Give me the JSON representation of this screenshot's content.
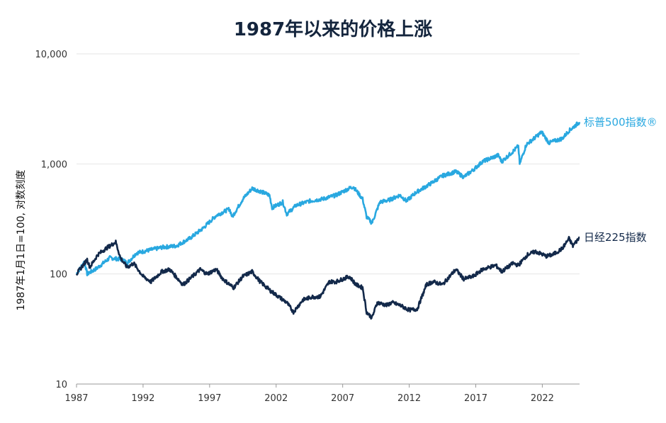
{
  "chart_data": {
    "type": "line",
    "title": "1987年以来的价格上涨",
    "xlabel": "",
    "ylabel": "1987年1月1日=100, 对数刻度",
    "y_scale": "log",
    "ylim": [
      10,
      10000
    ],
    "xlim": [
      1987,
      2024.8
    ],
    "y_ticks": [
      10,
      100,
      1000,
      10000
    ],
    "y_tick_labels": [
      "10",
      "100",
      "1,000",
      "10,000"
    ],
    "x_ticks": [
      1987,
      1992,
      1997,
      2002,
      2007,
      2012,
      2017,
      2022
    ],
    "x_tick_labels": [
      "1987",
      "1992",
      "1997",
      "2002",
      "2007",
      "2012",
      "2017",
      "2022"
    ],
    "grid": true,
    "series": [
      {
        "name": "标普500指数®",
        "color": "#29a8e0",
        "x": [
          1987.0,
          1987.6,
          1987.8,
          1988.5,
          1989.5,
          1990.5,
          1990.8,
          1991.5,
          1992.5,
          1993.5,
          1994.5,
          1995.5,
          1996.5,
          1997.5,
          1998.5,
          1998.7,
          1999.5,
          2000.2,
          2000.7,
          2001.5,
          2001.7,
          2002.5,
          2002.8,
          2003.5,
          2004.5,
          2005.5,
          2006.5,
          2007.5,
          2007.8,
          2008.5,
          2008.8,
          2009.2,
          2009.8,
          2010.5,
          2011.3,
          2011.8,
          2012.5,
          2013.5,
          2014.5,
          2015.5,
          2016.1,
          2016.8,
          2017.5,
          2018.7,
          2018.95,
          2019.8,
          2020.2,
          2020.3,
          2020.8,
          2021.5,
          2021.95,
          2022.5,
          2022.8,
          2023.5,
          2024.0,
          2024.8
        ],
        "y": [
          100,
          130,
          100,
          112,
          140,
          135,
          125,
          155,
          165,
          175,
          180,
          210,
          260,
          340,
          390,
          330,
          480,
          600,
          570,
          520,
          400,
          450,
          350,
          420,
          460,
          480,
          520,
          600,
          620,
          480,
          330,
          290,
          450,
          470,
          520,
          460,
          550,
          650,
          780,
          850,
          760,
          880,
          1050,
          1200,
          1050,
          1300,
          1450,
          1000,
          1500,
          1750,
          1950,
          1550,
          1600,
          1700,
          2000,
          2400
        ]
      },
      {
        "name": "日经225指数",
        "color": "#13294a",
        "x": [
          1987.0,
          1987.8,
          1988.0,
          1988.6,
          1989.2,
          1989.95,
          1990.3,
          1990.8,
          1991.3,
          1992.0,
          1992.6,
          1993.4,
          1994.0,
          1995.0,
          1995.5,
          1996.3,
          1996.8,
          1997.5,
          1998.0,
          1998.8,
          1999.5,
          2000.2,
          2000.8,
          2001.6,
          2002.2,
          2002.8,
          2003.3,
          2004.0,
          2004.7,
          2005.3,
          2006.0,
          2006.5,
          2007.5,
          2008.0,
          2008.5,
          2008.8,
          2009.2,
          2009.6,
          2010.3,
          2010.7,
          2011.3,
          2012.0,
          2012.6,
          2013.3,
          2013.8,
          2014.5,
          2015.5,
          2016.1,
          2016.8,
          2017.5,
          2018.5,
          2018.95,
          2019.8,
          2020.2,
          2020.9,
          2021.5,
          2022.3,
          2022.8,
          2023.5,
          2024.0,
          2024.3,
          2024.8
        ],
        "y": [
          100,
          135,
          115,
          150,
          170,
          195,
          140,
          115,
          125,
          95,
          85,
          105,
          110,
          80,
          90,
          110,
          100,
          110,
          90,
          75,
          95,
          105,
          85,
          70,
          62,
          55,
          45,
          58,
          62,
          62,
          85,
          85,
          95,
          80,
          75,
          45,
          40,
          55,
          52,
          55,
          52,
          47,
          48,
          80,
          85,
          80,
          110,
          90,
          95,
          110,
          120,
          105,
          125,
          120,
          150,
          160,
          145,
          150,
          170,
          210,
          180,
          215
        ]
      }
    ],
    "annotations": [
      {
        "text": "标普500指数®",
        "series": 0
      },
      {
        "text": "日经225指数",
        "series": 1
      }
    ]
  }
}
